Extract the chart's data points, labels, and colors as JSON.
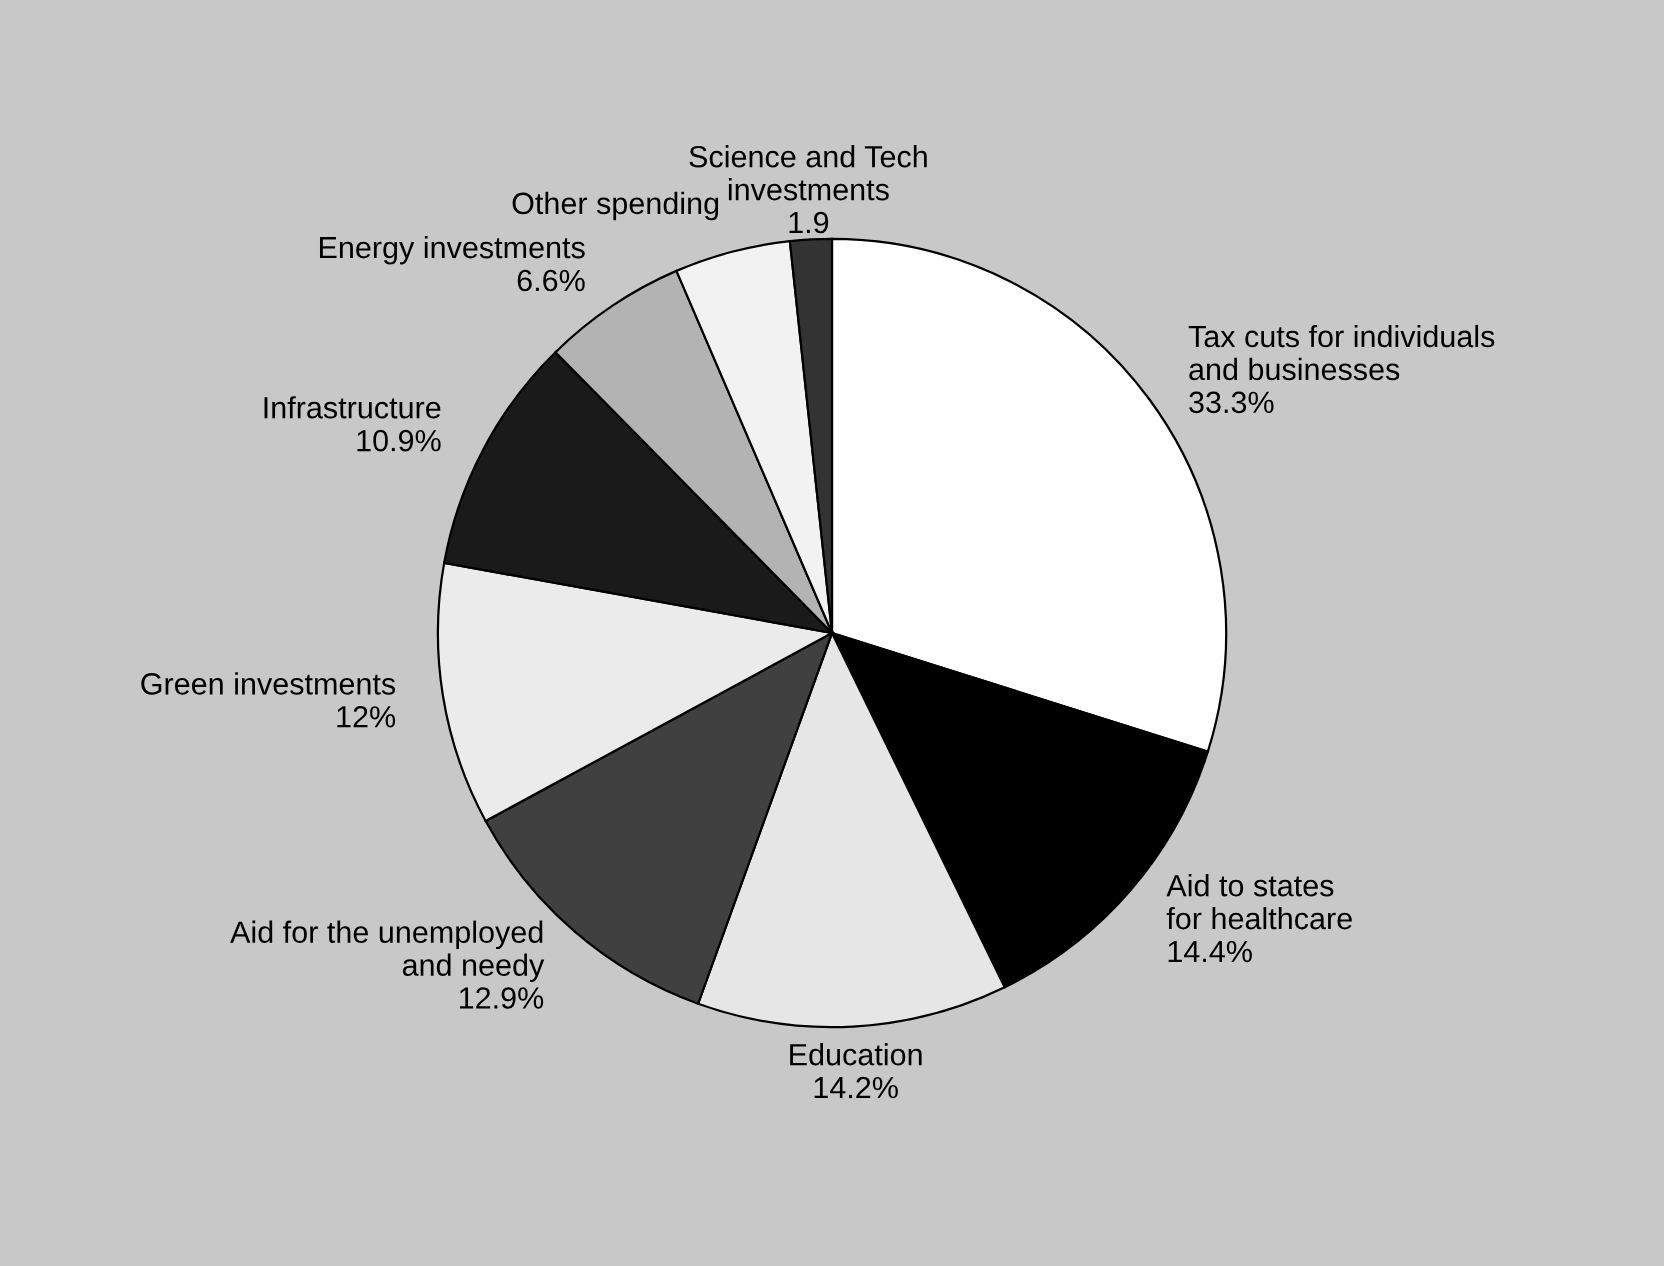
{
  "chart_data": {
    "type": "pie",
    "categories": [
      "Tax cuts for individuals\nand businesses",
      "Aid to states\nfor healthcare",
      "Education",
      "Aid for the unemployed\nand needy",
      "Green investments",
      "Infrastructure",
      "Energy investments",
      "Other spending",
      "Science and Tech\ninvestments"
    ],
    "values": [
      33.3,
      14.4,
      14.2,
      12.9,
      12,
      10.9,
      6.6,
      5.3,
      1.9
    ],
    "value_labels": [
      "33.3%",
      "14.4%",
      "14.2%",
      "12.9%",
      "12%",
      "10.9%",
      "6.6%",
      null,
      "1.9"
    ],
    "colors": [
      "#ffffff",
      "#000000",
      "#e6e6e6",
      "#404040",
      "#ebebeb",
      "#1a1a1a",
      "#b3b3b3",
      "#f2f2f2",
      "#333333"
    ],
    "legend": false
  }
}
